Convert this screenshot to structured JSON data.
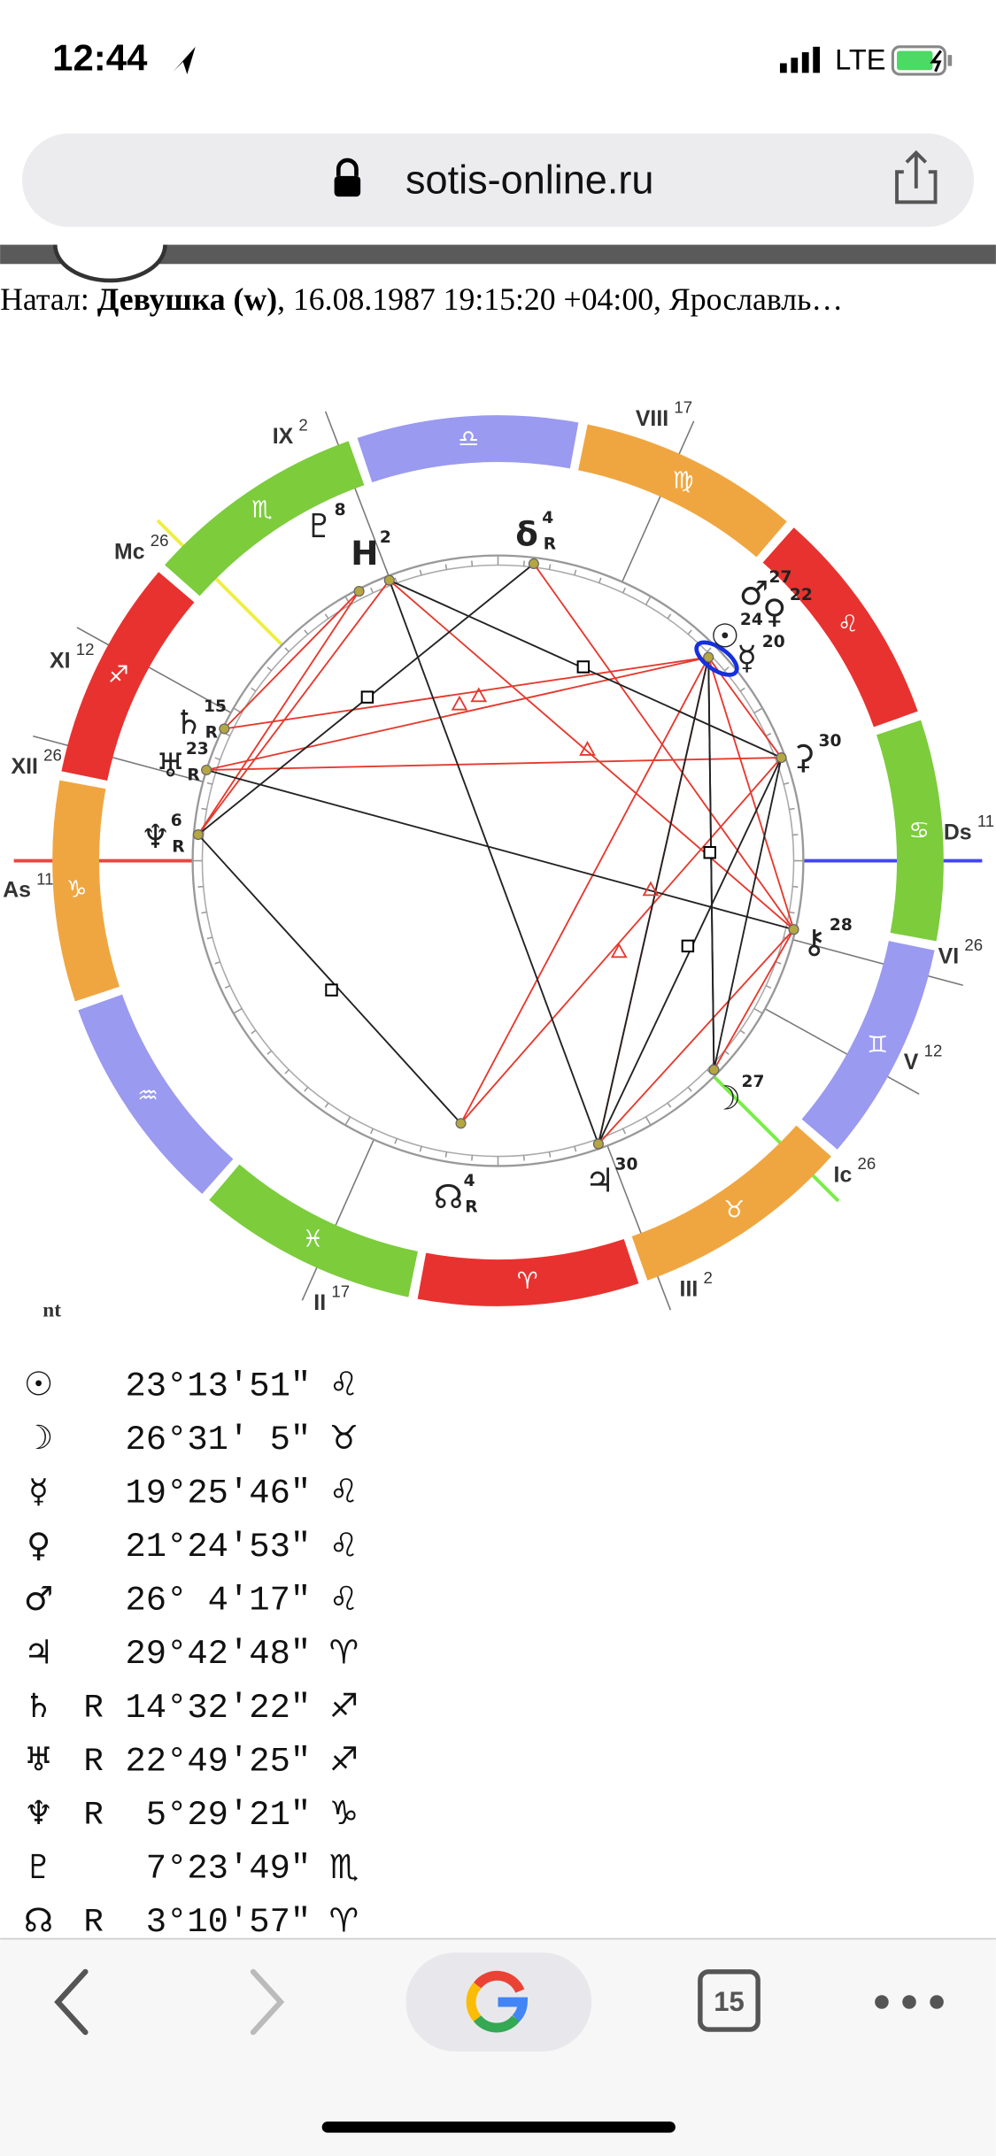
{
  "status_bar": {
    "time": "12:44",
    "network": "LTE"
  },
  "address_bar": {
    "url": "sotis-online.ru"
  },
  "header": {
    "prefix": "Натал: ",
    "name": "Девушка (w)",
    "details": ", 16.08.1987 19:15:20 +04:00, Ярославль…"
  },
  "wheel": {
    "signs": [
      "♈",
      "♉",
      "♊",
      "♋",
      "♌",
      "♍",
      "♎",
      "♏",
      "♐",
      "♑",
      "♒",
      "♓"
    ],
    "houses": [
      {
        "label": "As",
        "degree": 11
      },
      {
        "label": "II",
        "degree": 17
      },
      {
        "label": "III",
        "degree": 2
      },
      {
        "label": "Ic",
        "degree": 26
      },
      {
        "label": "V",
        "degree": 12
      },
      {
        "label": "VI",
        "degree": 26
      },
      {
        "label": "Ds",
        "degree": 11
      },
      {
        "label": "VIII",
        "degree": 17
      },
      {
        "label": "IX",
        "degree": 2
      },
      {
        "label": "Mc",
        "degree": 26
      },
      {
        "label": "XI",
        "degree": 12
      },
      {
        "label": "XII",
        "degree": 26
      }
    ],
    "planets": [
      {
        "glyph": "☉",
        "degree": 24
      },
      {
        "glyph": "☿",
        "degree": 20
      },
      {
        "glyph": "♀",
        "degree": 22
      },
      {
        "glyph": "♂",
        "degree": 27
      },
      {
        "glyph": "⚳",
        "degree": 30
      },
      {
        "glyph": "⚷",
        "degree": 28
      },
      {
        "glyph": "☽",
        "degree": 27
      },
      {
        "glyph": "♃",
        "degree": 30
      },
      {
        "glyph": "☊",
        "degree": 4,
        "retro": "R"
      },
      {
        "glyph": "♆",
        "degree": 6,
        "retro": "R"
      },
      {
        "glyph": "♅",
        "degree": 23,
        "retro": "R"
      },
      {
        "glyph": "♄",
        "degree": 15,
        "retro": "R"
      },
      {
        "glyph": "♇",
        "degree": 8
      },
      {
        "glyph": "H",
        "degree": 2
      },
      {
        "glyph": "δ",
        "degree": 4,
        "retro": "R"
      }
    ]
  },
  "legend_label": "nt",
  "positions": [
    {
      "glyph": "☉",
      "degree": "23°13′51″",
      "sign": "♌"
    },
    {
      "glyph": "☽",
      "degree": "26°31′ 5″",
      "sign": "♉"
    },
    {
      "glyph": "☿",
      "degree": "19°25′46″",
      "sign": "♌"
    },
    {
      "glyph": "♀",
      "degree": "21°24′53″",
      "sign": "♌"
    },
    {
      "glyph": "♂",
      "degree": "26° 4′17″",
      "sign": "♌"
    },
    {
      "glyph": "♃",
      "degree": "29°42′48″",
      "sign": "♈"
    },
    {
      "glyph": "♄",
      "retro": "R",
      "degree": "14°32′22″",
      "sign": "♐"
    },
    {
      "glyph": "♅",
      "retro": "R",
      "degree": "22°49′25″",
      "sign": "♐"
    },
    {
      "glyph": "♆",
      "retro": "R",
      "degree": " 5°29′21″",
      "sign": "♑"
    },
    {
      "glyph": "♇",
      "degree": " 7°23′49″",
      "sign": "♏"
    },
    {
      "glyph": "☊",
      "retro": "R",
      "degree": " 3°10′57″",
      "sign": "♈"
    }
  ],
  "toolbar": {
    "tabs": "15"
  }
}
